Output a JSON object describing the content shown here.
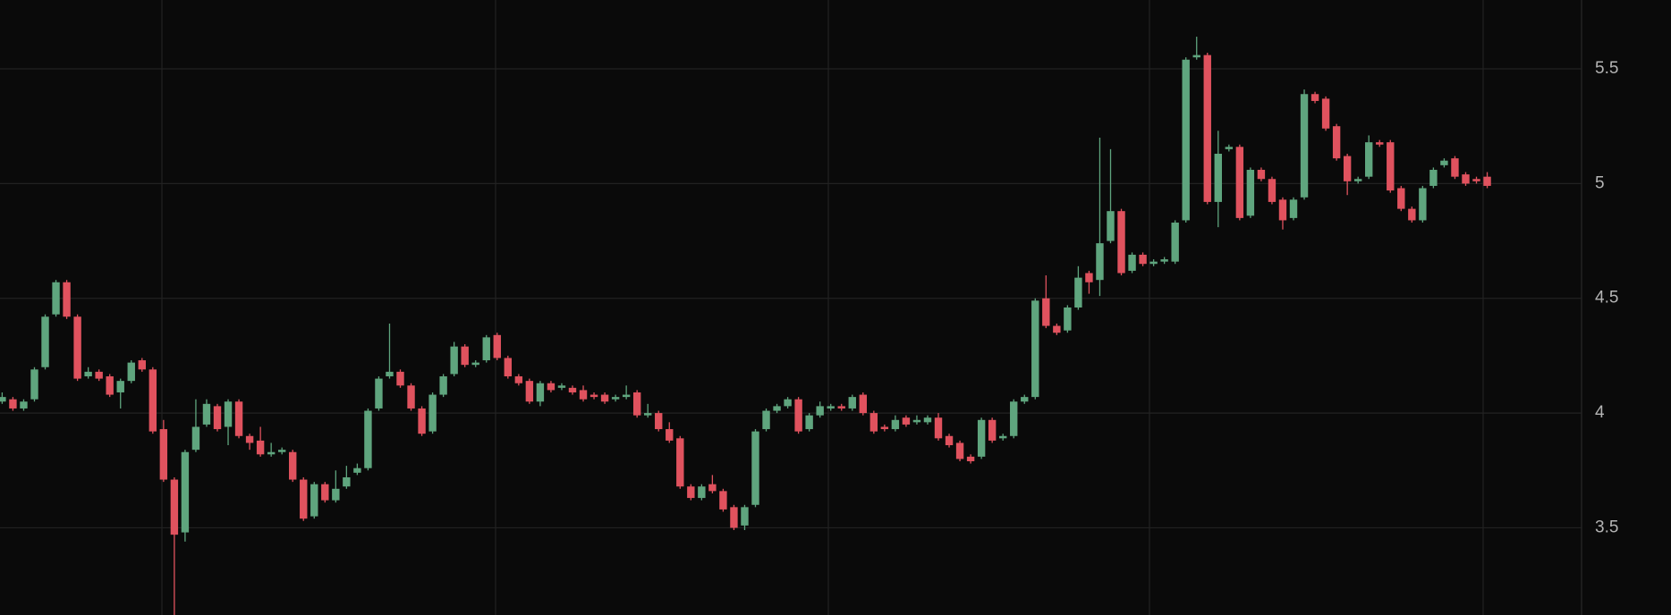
{
  "chart_data": {
    "type": "candlestick",
    "up_color": "#5fa57e",
    "down_color": "#e0525e",
    "grid": true,
    "ylim": [
      3.12,
      5.8
    ],
    "yticks": [
      3.5,
      4,
      4.5,
      5,
      5.5
    ],
    "candles": [
      {
        "open": 4.05,
        "high": 4.09,
        "low": 4.04,
        "close": 4.07
      },
      {
        "open": 4.06,
        "high": 4.07,
        "low": 4.01,
        "close": 4.02
      },
      {
        "open": 4.02,
        "high": 4.06,
        "low": 4.01,
        "close": 4.05
      },
      {
        "open": 4.06,
        "high": 4.2,
        "low": 4.05,
        "close": 4.19
      },
      {
        "open": 4.2,
        "high": 4.43,
        "low": 4.19,
        "close": 4.42
      },
      {
        "open": 4.43,
        "high": 4.58,
        "low": 4.42,
        "close": 4.57
      },
      {
        "open": 4.57,
        "high": 4.58,
        "low": 4.41,
        "close": 4.42
      },
      {
        "open": 4.42,
        "high": 4.43,
        "low": 4.14,
        "close": 4.15
      },
      {
        "open": 4.16,
        "high": 4.2,
        "low": 4.15,
        "close": 4.18
      },
      {
        "open": 4.18,
        "high": 4.19,
        "low": 4.14,
        "close": 4.15
      },
      {
        "open": 4.16,
        "high": 4.17,
        "low": 4.07,
        "close": 4.08
      },
      {
        "open": 4.09,
        "high": 4.15,
        "low": 4.02,
        "close": 4.14
      },
      {
        "open": 4.14,
        "high": 4.23,
        "low": 4.13,
        "close": 4.22
      },
      {
        "open": 4.23,
        "high": 4.24,
        "low": 4.18,
        "close": 4.19
      },
      {
        "open": 4.19,
        "high": 4.2,
        "low": 3.91,
        "close": 3.92
      },
      {
        "open": 3.93,
        "high": 3.97,
        "low": 3.7,
        "close": 3.71
      },
      {
        "open": 3.71,
        "high": 3.72,
        "low": 3.12,
        "close": 3.47
      },
      {
        "open": 3.48,
        "high": 3.84,
        "low": 3.44,
        "close": 3.83
      },
      {
        "open": 3.84,
        "high": 4.06,
        "low": 3.83,
        "close": 3.94
      },
      {
        "open": 3.95,
        "high": 4.06,
        "low": 3.94,
        "close": 4.04
      },
      {
        "open": 4.03,
        "high": 4.04,
        "low": 3.92,
        "close": 3.93
      },
      {
        "open": 3.94,
        "high": 4.06,
        "low": 3.86,
        "close": 4.05
      },
      {
        "open": 4.05,
        "high": 4.06,
        "low": 3.89,
        "close": 3.9
      },
      {
        "open": 3.9,
        "high": 3.91,
        "low": 3.84,
        "close": 3.87
      },
      {
        "open": 3.88,
        "high": 3.94,
        "low": 3.81,
        "close": 3.82
      },
      {
        "open": 3.82,
        "high": 3.87,
        "low": 3.81,
        "close": 3.83
      },
      {
        "open": 3.83,
        "high": 3.85,
        "low": 3.82,
        "close": 3.84
      },
      {
        "open": 3.83,
        "high": 3.84,
        "low": 3.7,
        "close": 3.71
      },
      {
        "open": 3.71,
        "high": 3.72,
        "low": 3.53,
        "close": 3.54
      },
      {
        "open": 3.55,
        "high": 3.7,
        "low": 3.54,
        "close": 3.69
      },
      {
        "open": 3.69,
        "high": 3.7,
        "low": 3.61,
        "close": 3.62
      },
      {
        "open": 3.62,
        "high": 3.75,
        "low": 3.61,
        "close": 3.67
      },
      {
        "open": 3.68,
        "high": 3.77,
        "low": 3.67,
        "close": 3.72
      },
      {
        "open": 3.74,
        "high": 3.78,
        "low": 3.73,
        "close": 3.76
      },
      {
        "open": 3.76,
        "high": 4.02,
        "low": 3.75,
        "close": 4.01
      },
      {
        "open": 4.02,
        "high": 4.16,
        "low": 4.01,
        "close": 4.15
      },
      {
        "open": 4.16,
        "high": 4.39,
        "low": 4.15,
        "close": 4.18
      },
      {
        "open": 4.18,
        "high": 4.19,
        "low": 4.11,
        "close": 4.12
      },
      {
        "open": 4.12,
        "high": 4.13,
        "low": 4.01,
        "close": 4.02
      },
      {
        "open": 4.02,
        "high": 4.03,
        "low": 3.9,
        "close": 3.91
      },
      {
        "open": 3.92,
        "high": 4.09,
        "low": 3.91,
        "close": 4.08
      },
      {
        "open": 4.08,
        "high": 4.17,
        "low": 4.07,
        "close": 4.16
      },
      {
        "open": 4.17,
        "high": 4.31,
        "low": 4.16,
        "close": 4.29
      },
      {
        "open": 4.29,
        "high": 4.3,
        "low": 4.2,
        "close": 4.21
      },
      {
        "open": 4.21,
        "high": 4.23,
        "low": 4.2,
        "close": 4.22
      },
      {
        "open": 4.23,
        "high": 4.34,
        "low": 4.22,
        "close": 4.33
      },
      {
        "open": 4.34,
        "high": 4.35,
        "low": 4.23,
        "close": 4.24
      },
      {
        "open": 4.24,
        "high": 4.25,
        "low": 4.15,
        "close": 4.16
      },
      {
        "open": 4.16,
        "high": 4.17,
        "low": 4.12,
        "close": 4.13
      },
      {
        "open": 4.14,
        "high": 4.15,
        "low": 4.04,
        "close": 4.05
      },
      {
        "open": 4.05,
        "high": 4.14,
        "low": 4.03,
        "close": 4.13
      },
      {
        "open": 4.13,
        "high": 4.14,
        "low": 4.09,
        "close": 4.1
      },
      {
        "open": 4.11,
        "high": 4.13,
        "low": 4.1,
        "close": 4.12
      },
      {
        "open": 4.11,
        "high": 4.12,
        "low": 4.08,
        "close": 4.09
      },
      {
        "open": 4.1,
        "high": 4.12,
        "low": 4.05,
        "close": 4.06
      },
      {
        "open": 4.08,
        "high": 4.09,
        "low": 4.06,
        "close": 4.07
      },
      {
        "open": 4.08,
        "high": 4.09,
        "low": 4.04,
        "close": 4.05
      },
      {
        "open": 4.06,
        "high": 4.08,
        "low": 4.05,
        "close": 4.07
      },
      {
        "open": 4.07,
        "high": 4.12,
        "low": 4.06,
        "close": 4.08
      },
      {
        "open": 4.09,
        "high": 4.1,
        "low": 3.98,
        "close": 3.99
      },
      {
        "open": 3.99,
        "high": 4.04,
        "low": 3.98,
        "close": 4.0
      },
      {
        "open": 4.0,
        "high": 4.01,
        "low": 3.92,
        "close": 3.93
      },
      {
        "open": 3.93,
        "high": 3.96,
        "low": 3.87,
        "close": 3.88
      },
      {
        "open": 3.89,
        "high": 3.9,
        "low": 3.67,
        "close": 3.68
      },
      {
        "open": 3.68,
        "high": 3.69,
        "low": 3.62,
        "close": 3.63
      },
      {
        "open": 3.63,
        "high": 3.69,
        "low": 3.62,
        "close": 3.68
      },
      {
        "open": 3.69,
        "high": 3.73,
        "low": 3.65,
        "close": 3.66
      },
      {
        "open": 3.66,
        "high": 3.67,
        "low": 3.57,
        "close": 3.58
      },
      {
        "open": 3.59,
        "high": 3.6,
        "low": 3.49,
        "close": 3.5
      },
      {
        "open": 3.51,
        "high": 3.6,
        "low": 3.49,
        "close": 3.59
      },
      {
        "open": 3.6,
        "high": 3.93,
        "low": 3.59,
        "close": 3.92
      },
      {
        "open": 3.93,
        "high": 4.02,
        "low": 3.92,
        "close": 4.01
      },
      {
        "open": 4.01,
        "high": 4.04,
        "low": 4.0,
        "close": 4.03
      },
      {
        "open": 4.03,
        "high": 4.07,
        "low": 4.02,
        "close": 4.06
      },
      {
        "open": 4.06,
        "high": 4.07,
        "low": 3.91,
        "close": 3.92
      },
      {
        "open": 3.93,
        "high": 4.0,
        "low": 3.92,
        "close": 3.99
      },
      {
        "open": 3.99,
        "high": 4.05,
        "low": 3.98,
        "close": 4.03
      },
      {
        "open": 4.02,
        "high": 4.04,
        "low": 4.01,
        "close": 4.03
      },
      {
        "open": 4.03,
        "high": 4.04,
        "low": 4.01,
        "close": 4.02
      },
      {
        "open": 4.02,
        "high": 4.08,
        "low": 4.01,
        "close": 4.07
      },
      {
        "open": 4.08,
        "high": 4.09,
        "low": 3.99,
        "close": 4.0
      },
      {
        "open": 4.0,
        "high": 4.01,
        "low": 3.91,
        "close": 3.92
      },
      {
        "open": 3.94,
        "high": 3.95,
        "low": 3.92,
        "close": 3.93
      },
      {
        "open": 3.93,
        "high": 3.99,
        "low": 3.92,
        "close": 3.97
      },
      {
        "open": 3.98,
        "high": 3.99,
        "low": 3.94,
        "close": 3.95
      },
      {
        "open": 3.96,
        "high": 3.99,
        "low": 3.95,
        "close": 3.97
      },
      {
        "open": 3.96,
        "high": 3.99,
        "low": 3.95,
        "close": 3.98
      },
      {
        "open": 3.98,
        "high": 4.0,
        "low": 3.88,
        "close": 3.89
      },
      {
        "open": 3.9,
        "high": 3.91,
        "low": 3.85,
        "close": 3.86
      },
      {
        "open": 3.87,
        "high": 3.88,
        "low": 3.79,
        "close": 3.8
      },
      {
        "open": 3.81,
        "high": 3.82,
        "low": 3.78,
        "close": 3.79
      },
      {
        "open": 3.81,
        "high": 3.98,
        "low": 3.8,
        "close": 3.97
      },
      {
        "open": 3.97,
        "high": 3.98,
        "low": 3.87,
        "close": 3.88
      },
      {
        "open": 3.89,
        "high": 3.91,
        "low": 3.88,
        "close": 3.9
      },
      {
        "open": 3.9,
        "high": 4.06,
        "low": 3.89,
        "close": 4.05
      },
      {
        "open": 4.05,
        "high": 4.08,
        "low": 4.04,
        "close": 4.07
      },
      {
        "open": 4.07,
        "high": 4.5,
        "low": 4.06,
        "close": 4.49
      },
      {
        "open": 4.5,
        "high": 4.6,
        "low": 4.37,
        "close": 4.38
      },
      {
        "open": 4.38,
        "high": 4.39,
        "low": 4.34,
        "close": 4.35
      },
      {
        "open": 4.36,
        "high": 4.47,
        "low": 4.35,
        "close": 4.46
      },
      {
        "open": 4.46,
        "high": 4.64,
        "low": 4.45,
        "close": 4.59
      },
      {
        "open": 4.61,
        "high": 4.62,
        "low": 4.52,
        "close": 4.57
      },
      {
        "open": 4.58,
        "high": 5.2,
        "low": 4.51,
        "close": 4.74
      },
      {
        "open": 4.75,
        "high": 5.15,
        "low": 4.74,
        "close": 4.88
      },
      {
        "open": 4.88,
        "high": 4.89,
        "low": 4.6,
        "close": 4.61
      },
      {
        "open": 4.62,
        "high": 4.7,
        "low": 4.61,
        "close": 4.69
      },
      {
        "open": 4.69,
        "high": 4.7,
        "low": 4.64,
        "close": 4.65
      },
      {
        "open": 4.65,
        "high": 4.67,
        "low": 4.64,
        "close": 4.66
      },
      {
        "open": 4.66,
        "high": 4.68,
        "low": 4.65,
        "close": 4.67
      },
      {
        "open": 4.66,
        "high": 4.84,
        "low": 4.65,
        "close": 4.83
      },
      {
        "open": 4.84,
        "high": 5.55,
        "low": 4.83,
        "close": 5.54
      },
      {
        "open": 5.55,
        "high": 5.64,
        "low": 5.54,
        "close": 5.56
      },
      {
        "open": 5.56,
        "high": 5.57,
        "low": 4.91,
        "close": 4.92
      },
      {
        "open": 4.92,
        "high": 5.23,
        "low": 4.81,
        "close": 5.13
      },
      {
        "open": 5.15,
        "high": 5.17,
        "low": 5.14,
        "close": 5.16
      },
      {
        "open": 5.16,
        "high": 5.17,
        "low": 4.84,
        "close": 4.85
      },
      {
        "open": 4.86,
        "high": 5.07,
        "low": 4.85,
        "close": 5.06
      },
      {
        "open": 5.06,
        "high": 5.07,
        "low": 5.01,
        "close": 5.02
      },
      {
        "open": 5.02,
        "high": 5.03,
        "low": 4.91,
        "close": 4.92
      },
      {
        "open": 4.93,
        "high": 4.94,
        "low": 4.8,
        "close": 4.84
      },
      {
        "open": 4.85,
        "high": 4.94,
        "low": 4.84,
        "close": 4.93
      },
      {
        "open": 4.94,
        "high": 5.41,
        "low": 4.93,
        "close": 5.39
      },
      {
        "open": 5.39,
        "high": 5.4,
        "low": 5.35,
        "close": 5.36
      },
      {
        "open": 5.37,
        "high": 5.38,
        "low": 5.23,
        "close": 5.24
      },
      {
        "open": 5.25,
        "high": 5.26,
        "low": 5.1,
        "close": 5.11
      },
      {
        "open": 5.12,
        "high": 5.13,
        "low": 4.95,
        "close": 5.01
      },
      {
        "open": 5.01,
        "high": 5.03,
        "low": 5.0,
        "close": 5.02
      },
      {
        "open": 5.03,
        "high": 5.21,
        "low": 5.02,
        "close": 5.18
      },
      {
        "open": 5.18,
        "high": 5.19,
        "low": 5.16,
        "close": 5.17
      },
      {
        "open": 5.18,
        "high": 5.19,
        "low": 4.96,
        "close": 4.97
      },
      {
        "open": 4.98,
        "high": 4.99,
        "low": 4.88,
        "close": 4.89
      },
      {
        "open": 4.89,
        "high": 4.9,
        "low": 4.83,
        "close": 4.84
      },
      {
        "open": 4.84,
        "high": 4.99,
        "low": 4.83,
        "close": 4.98
      },
      {
        "open": 4.99,
        "high": 5.07,
        "low": 4.98,
        "close": 5.06
      },
      {
        "open": 5.08,
        "high": 5.11,
        "low": 5.07,
        "close": 5.1
      },
      {
        "open": 5.11,
        "high": 5.12,
        "low": 5.02,
        "close": 5.03
      },
      {
        "open": 5.04,
        "high": 5.05,
        "low": 4.99,
        "close": 5.0
      },
      {
        "open": 5.02,
        "high": 5.03,
        "low": 5.0,
        "close": 5.01
      },
      {
        "open": 5.03,
        "high": 5.05,
        "low": 4.98,
        "close": 4.99
      }
    ]
  }
}
